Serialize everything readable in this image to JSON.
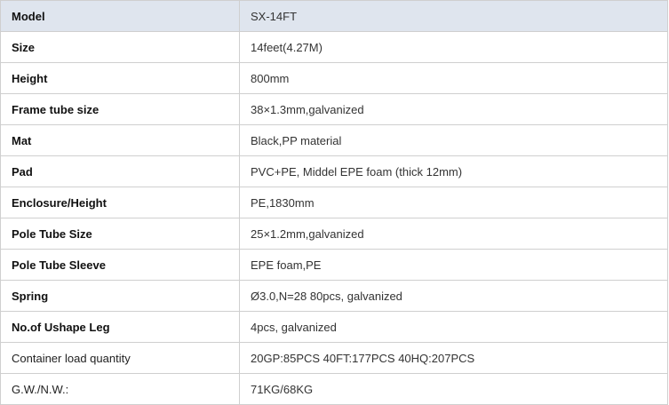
{
  "specs": [
    {
      "label": "Model",
      "value": "SX-14FT",
      "bold": true
    },
    {
      "label": "Size",
      "value": "14feet(4.27M)",
      "bold": true
    },
    {
      "label": "Height",
      "value": "800mm",
      "bold": true
    },
    {
      "label": "Frame tube size",
      "value": "38×1.3mm,galvanized",
      "bold": true
    },
    {
      "label": "Mat",
      "value": "Black,PP material",
      "bold": true
    },
    {
      "label": "Pad",
      "value": "PVC+PE, Middel EPE foam (thick 12mm)",
      "bold": true
    },
    {
      "label": "Enclosure/Height",
      "value": "PE,1830mm",
      "bold": true
    },
    {
      "label": "Pole Tube Size",
      "value": "25×1.2mm,galvanized",
      "bold": true
    },
    {
      "label": "Pole Tube Sleeve",
      "value": "EPE foam,PE",
      "bold": true
    },
    {
      "label": "Spring",
      "value": "Ø3.0,N=28 80pcs, galvanized",
      "bold": true
    },
    {
      "label": "No.of Ushape Leg",
      "value": "4pcs, galvanized",
      "bold": true
    },
    {
      "label": "Container load quantity",
      "value": "20GP:85PCS 40FT:177PCS 40HQ:207PCS",
      "bold": false
    },
    {
      "label": "G.W./N.W.:",
      "value": "71KG/68KG",
      "bold": false
    }
  ],
  "colors": {
    "header_bg": "#dfe5ee",
    "border": "#cfcfcf"
  }
}
